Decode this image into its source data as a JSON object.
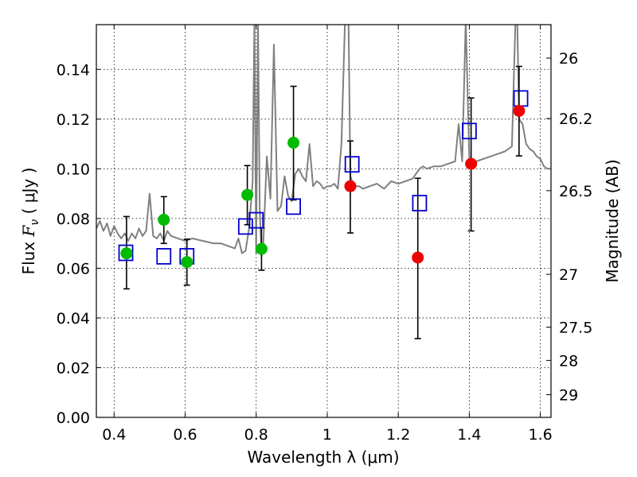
{
  "chart_data": {
    "type": "scatter",
    "title": "",
    "xlabel": "Wavelength  λ (μm)",
    "ylabel_prefix": "Flux  ",
    "ylabel_symbol": "F",
    "ylabel_sub": "ν",
    "ylabel_unit": "  ( μJy )",
    "ylabel_right": "Magnitude (AB)",
    "xlim": [
      0.35,
      1.63
    ],
    "ylim": [
      0.0,
      0.158
    ],
    "grid": true,
    "xticks": [
      0.4,
      0.6,
      0.8,
      1.0,
      1.2,
      1.4,
      1.6
    ],
    "xtick_labels": [
      "0.4",
      "0.6",
      "0.8",
      "1",
      "1.2",
      "1.4",
      "1.6"
    ],
    "yticks": [
      0.0,
      0.02,
      0.04,
      0.06,
      0.08,
      0.1,
      0.12,
      0.14
    ],
    "ytick_labels": [
      "0.00",
      "0.02",
      "0.04",
      "0.06",
      "0.08",
      "0.10",
      "0.12",
      "0.14"
    ],
    "right_ticks": [
      {
        "mag": 26,
        "label": "26"
      },
      {
        "mag": 26.2,
        "label": "26.2"
      },
      {
        "mag": 26.5,
        "label": "26.5"
      },
      {
        "mag": 27,
        "label": "27"
      },
      {
        "mag": 27.5,
        "label": "27.5"
      },
      {
        "mag": 28,
        "label": "28"
      },
      {
        "mag": 29,
        "label": "29"
      }
    ],
    "colors": {
      "template": "#808080",
      "observed_green": "#00bb00",
      "observed_red": "#ee0000",
      "model": "#0000cc",
      "errorbar": "#000000"
    },
    "model_template": {
      "name": "model spectrum",
      "x": [
        0.35,
        0.36,
        0.37,
        0.38,
        0.39,
        0.4,
        0.41,
        0.42,
        0.43,
        0.44,
        0.45,
        0.46,
        0.47,
        0.48,
        0.49,
        0.5,
        0.51,
        0.52,
        0.53,
        0.54,
        0.55,
        0.56,
        0.58,
        0.6,
        0.62,
        0.65,
        0.68,
        0.7,
        0.72,
        0.74,
        0.75,
        0.76,
        0.77,
        0.78,
        0.79,
        0.795,
        0.8,
        0.805,
        0.81,
        0.815,
        0.82,
        0.83,
        0.84,
        0.85,
        0.86,
        0.87,
        0.88,
        0.89,
        0.9,
        0.91,
        0.92,
        0.93,
        0.94,
        0.95,
        0.96,
        0.97,
        0.98,
        0.99,
        1.0,
        1.01,
        1.02,
        1.03,
        1.04,
        1.05,
        1.06,
        1.065,
        1.07,
        1.075,
        1.08,
        1.09,
        1.1,
        1.12,
        1.14,
        1.16,
        1.18,
        1.2,
        1.22,
        1.24,
        1.25,
        1.26,
        1.27,
        1.28,
        1.3,
        1.32,
        1.34,
        1.36,
        1.37,
        1.38,
        1.39,
        1.4,
        1.41,
        1.42,
        1.44,
        1.46,
        1.48,
        1.5,
        1.52,
        1.53,
        1.535,
        1.54,
        1.55,
        1.56,
        1.57,
        1.58,
        1.59,
        1.6,
        1.61,
        1.62,
        1.63
      ],
      "y": [
        0.076,
        0.079,
        0.075,
        0.078,
        0.073,
        0.077,
        0.074,
        0.072,
        0.074,
        0.071,
        0.074,
        0.072,
        0.076,
        0.073,
        0.075,
        0.09,
        0.073,
        0.072,
        0.074,
        0.071,
        0.075,
        0.073,
        0.072,
        0.071,
        0.072,
        0.071,
        0.07,
        0.07,
        0.069,
        0.068,
        0.072,
        0.066,
        0.067,
        0.076,
        0.095,
        0.16,
        0.066,
        0.16,
        0.084,
        0.065,
        0.07,
        0.105,
        0.088,
        0.15,
        0.083,
        0.085,
        0.097,
        0.089,
        0.087,
        0.098,
        0.1,
        0.097,
        0.095,
        0.11,
        0.093,
        0.095,
        0.094,
        0.092,
        0.093,
        0.093,
        0.094,
        0.092,
        0.11,
        0.16,
        0.16,
        0.097,
        0.095,
        0.094,
        0.093,
        0.093,
        0.092,
        0.093,
        0.094,
        0.092,
        0.095,
        0.094,
        0.095,
        0.096,
        0.098,
        0.1,
        0.101,
        0.1,
        0.101,
        0.101,
        0.102,
        0.103,
        0.118,
        0.103,
        0.16,
        0.104,
        0.102,
        0.103,
        0.104,
        0.105,
        0.106,
        0.107,
        0.109,
        0.16,
        0.16,
        0.12,
        0.118,
        0.11,
        0.108,
        0.107,
        0.105,
        0.104,
        0.101,
        0.1,
        0.1
      ]
    },
    "series": [
      {
        "name": "observed photometry (green)",
        "marker": "filled-circle",
        "color_key": "observed_green",
        "x": [
          0.435,
          0.54,
          0.605,
          0.775,
          0.815,
          0.905
        ],
        "y": [
          0.066,
          0.0795,
          0.0625,
          0.0895,
          0.0678,
          0.1105
        ]
      },
      {
        "name": "observed photometry (red)",
        "marker": "filled-circle",
        "color_key": "observed_red",
        "x": [
          1.065,
          1.255,
          1.405,
          1.54
        ],
        "y": [
          0.093,
          0.0643,
          0.102,
          0.1233
        ]
      },
      {
        "name": "model photometry",
        "marker": "open-square",
        "color_key": "model",
        "x": [
          0.433,
          0.54,
          0.605,
          0.77,
          0.8,
          0.905,
          1.07,
          1.26,
          1.4,
          1.545
        ],
        "y": [
          0.0662,
          0.0648,
          0.0648,
          0.0768,
          0.0793,
          0.0848,
          0.1018,
          0.0862,
          0.1152,
          0.1283
        ]
      }
    ],
    "error_bars": [
      {
        "x": 0.435,
        "low": 0.0517,
        "high": 0.0808
      },
      {
        "x": 0.54,
        "low": 0.07,
        "high": 0.0888
      },
      {
        "x": 0.605,
        "low": 0.0532,
        "high": 0.0717
      },
      {
        "x": 0.775,
        "low": 0.0775,
        "high": 0.1013
      },
      {
        "x": 0.815,
        "low": 0.0592,
        "high": 0.0762
      },
      {
        "x": 0.905,
        "low": 0.0875,
        "high": 0.1332
      },
      {
        "x": 1.065,
        "low": 0.0742,
        "high": 0.1112
      },
      {
        "x": 1.255,
        "low": 0.0317,
        "high": 0.0962
      },
      {
        "x": 1.405,
        "low": 0.075,
        "high": 0.1285
      },
      {
        "x": 1.54,
        "low": 0.1052,
        "high": 0.1412
      }
    ]
  }
}
